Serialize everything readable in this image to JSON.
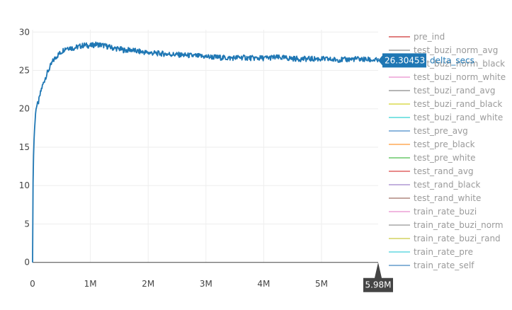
{
  "chart_data": {
    "type": "line",
    "x_ticks": [
      {
        "value": 0,
        "label": "0"
      },
      {
        "value": 1000000,
        "label": "1M"
      },
      {
        "value": 2000000,
        "label": "2M"
      },
      {
        "value": 3000000,
        "label": "3M"
      },
      {
        "value": 4000000,
        "label": "4M"
      },
      {
        "value": 5000000,
        "label": "5M"
      }
    ],
    "y_ticks": [
      {
        "value": 0,
        "label": "0"
      },
      {
        "value": 5,
        "label": "5"
      },
      {
        "value": 10,
        "label": "10"
      },
      {
        "value": 15,
        "label": "15"
      },
      {
        "value": 20,
        "label": "20"
      },
      {
        "value": 25,
        "label": "25"
      },
      {
        "value": 30,
        "label": "30"
      }
    ],
    "xlim": [
      0,
      5980000
    ],
    "ylim": [
      -1.5,
      30.3
    ],
    "grid": true,
    "legend_position": "right",
    "series": [
      {
        "name": "delta_secs",
        "color": "#1f77b4",
        "x": [
          0,
          10000,
          30000,
          60000,
          100000,
          150000,
          200000,
          250000,
          300000,
          350000,
          400000,
          450000,
          500000,
          550000,
          600000,
          700000,
          800000,
          900000,
          1000000,
          1100000,
          1200000,
          1300000,
          1400000,
          1500000,
          1600000,
          1700000,
          1800000,
          1900000,
          2000000,
          2200000,
          2400000,
          2600000,
          2800000,
          3000000,
          3200000,
          3400000,
          3600000,
          3800000,
          4000000,
          4200000,
          4400000,
          4600000,
          4800000,
          5000000,
          5200000,
          5400000,
          5600000,
          5800000,
          5980000
        ],
        "values": [
          0,
          12.2,
          17.0,
          20.2,
          20.8,
          22.5,
          23.6,
          24.6,
          25.4,
          26.2,
          26.7,
          27.1,
          27.4,
          27.8,
          28.0,
          27.9,
          28.1,
          28.3,
          28.2,
          28.4,
          28.3,
          28.1,
          27.9,
          27.8,
          27.6,
          27.7,
          27.5,
          27.4,
          27.3,
          27.2,
          27.1,
          27.0,
          26.9,
          26.8,
          26.7,
          26.6,
          26.7,
          26.6,
          26.6,
          26.7,
          26.6,
          26.5,
          26.5,
          26.5,
          26.4,
          26.4,
          26.5,
          26.4,
          26.3
        ]
      }
    ],
    "legend": [
      {
        "name": "pre_ind",
        "color": "#e07f7f"
      },
      {
        "name": "test_buzi_norm_avg",
        "color": "#b5b5b5"
      },
      {
        "name": "test_buzi_norm_black",
        "color": "#c2c2c2"
      },
      {
        "name": "test_buzi_norm_white",
        "color": "#f2b8e0"
      },
      {
        "name": "test_buzi_rand_avg",
        "color": "#b5b5b5"
      },
      {
        "name": "test_buzi_rand_black",
        "color": "#e3e37a"
      },
      {
        "name": "test_buzi_rand_white",
        "color": "#80e3e3"
      },
      {
        "name": "test_pre_avg",
        "color": "#8cb6dd"
      },
      {
        "name": "test_pre_black",
        "color": "#ffbf80"
      },
      {
        "name": "test_pre_white",
        "color": "#8fd68f"
      },
      {
        "name": "test_rand_avg",
        "color": "#e88a8a"
      },
      {
        "name": "test_rand_black",
        "color": "#c3b1de"
      },
      {
        "name": "test_rand_white",
        "color": "#c4a69f"
      },
      {
        "name": "train_rate_buzi",
        "color": "#f1b8e0"
      },
      {
        "name": "train_rate_buzi_norm",
        "color": "#bdbdbd"
      },
      {
        "name": "train_rate_buzi_rand",
        "color": "#dddd88"
      },
      {
        "name": "train_rate_pre",
        "color": "#8ae2e8"
      },
      {
        "name": "train_rate_self",
        "color": "#8ab4d8"
      }
    ],
    "hover": {
      "y_value": "26.30453",
      "series_name": "delta_secs",
      "x_value": "5.98M"
    }
  }
}
